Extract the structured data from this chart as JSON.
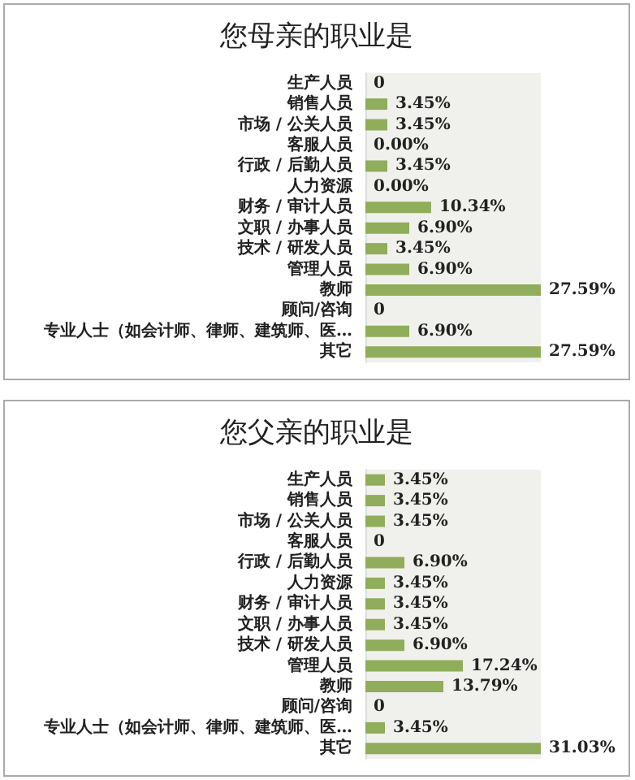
{
  "chart_data": [
    {
      "type": "bar",
      "orientation": "horizontal",
      "title": "您母亲的职业是",
      "color": "#8fad5a",
      "categories": [
        "生产人员",
        "销售人员",
        "市场 / 公关人员",
        "客服人员",
        "行政 / 后勤人员",
        "人力资源",
        "财务 / 审计人员",
        "文职 / 办事人员",
        "技术 / 研发人员",
        "管理人员",
        "教师",
        "顾问/咨询",
        "专业人士（如会计师、律师、建筑师、医…",
        "其它"
      ],
      "values": [
        0,
        3.45,
        3.45,
        0,
        3.45,
        0,
        10.34,
        6.9,
        3.45,
        6.9,
        27.59,
        0,
        6.9,
        27.59
      ],
      "value_labels": [
        "0",
        "3.45%",
        "3.45%",
        "0.00%",
        "3.45%",
        "0.00%",
        "10.34%",
        "6.90%",
        "3.45%",
        "6.90%",
        "27.59%",
        "0",
        "6.90%",
        "27.59%"
      ]
    },
    {
      "type": "bar",
      "orientation": "horizontal",
      "title": "您父亲的职业是",
      "color": "#8fad5a",
      "categories": [
        "生产人员",
        "销售人员",
        "市场 / 公关人员",
        "客服人员",
        "行政 / 后勤人员",
        "人力资源",
        "财务 / 审计人员",
        "文职 / 办事人员",
        "技术 / 研发人员",
        "管理人员",
        "教师",
        "顾问/咨询",
        "专业人士（如会计师、律师、建筑师、医…",
        "其它"
      ],
      "values": [
        3.45,
        3.45,
        3.45,
        0,
        6.9,
        3.45,
        3.45,
        3.45,
        6.9,
        17.24,
        13.79,
        0,
        3.45,
        31.03
      ],
      "value_labels": [
        "3.45%",
        "3.45%",
        "3.45%",
        "0",
        "6.90%",
        "3.45%",
        "3.45%",
        "3.45%",
        "6.90%",
        "17.24%",
        "13.79%",
        "0",
        "3.45%",
        "31.03%"
      ]
    }
  ]
}
